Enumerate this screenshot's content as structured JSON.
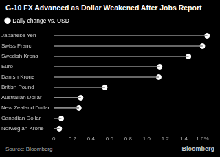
{
  "chart_data": {
    "type": "lollipop",
    "title": "G-10 FX Advanced as Dollar Weakened After Jobs Report",
    "source": "Source: Bloomberg",
    "credit": "Bloomberg",
    "orientation": "horizontal",
    "categories": [
      "Japanese Yen",
      "Swiss Franc",
      "Swedish Krona",
      "Euro",
      "Danish Krone",
      "British Pound",
      "Australian Dollar",
      "New Zealand Dollar",
      "Canadian Dollar",
      "Norwegian Krone"
    ],
    "series": [
      {
        "name": "Daily change vs. USD",
        "color": "#ffffff",
        "marker": "circle",
        "values": [
          1.65,
          1.6,
          1.45,
          1.14,
          1.13,
          0.55,
          0.29,
          0.27,
          0.08,
          0.06
        ]
      }
    ],
    "xlim": [
      0,
      1.7
    ],
    "xticks": [
      0,
      0.2,
      0.4,
      0.6,
      0.8,
      {
        "value": 1,
        "label": "1.0"
      },
      1.2,
      1.4,
      {
        "value": 1.6,
        "label": "1.6%"
      }
    ],
    "grid": false,
    "legend": "top-left"
  }
}
